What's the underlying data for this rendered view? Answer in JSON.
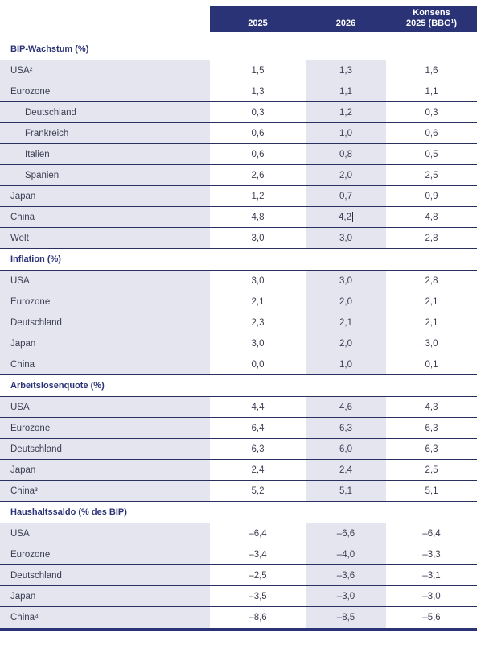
{
  "header": {
    "columns": [
      {
        "label": "2025"
      },
      {
        "label": "2026"
      },
      {
        "label_line1": "Konsens",
        "label_line2": "2025 (BBG¹)"
      }
    ]
  },
  "table": {
    "sections": [
      {
        "title": "BIP-Wachstum (%)",
        "rows": [
          {
            "label": "USA²",
            "indent": false,
            "values": [
              "1,5",
              "1,3",
              "1,6"
            ]
          },
          {
            "label": "Eurozone",
            "indent": false,
            "values": [
              "1,3",
              "1,1",
              "1,1"
            ]
          },
          {
            "label": "Deutschland",
            "indent": true,
            "values": [
              "0,3",
              "1,2",
              "0,3"
            ]
          },
          {
            "label": "Frankreich",
            "indent": true,
            "values": [
              "0,6",
              "1,0",
              "0,6"
            ]
          },
          {
            "label": "Italien",
            "indent": true,
            "values": [
              "0,6",
              "0,8",
              "0,5"
            ]
          },
          {
            "label": "Spanien",
            "indent": true,
            "values": [
              "2,6",
              "2,0",
              "2,5"
            ]
          },
          {
            "label": "Japan",
            "indent": false,
            "values": [
              "1,2",
              "0,7",
              "0,9"
            ]
          },
          {
            "label": "China",
            "indent": false,
            "values": [
              "4,8",
              "4,2",
              "4,8"
            ],
            "caret_after_col": 1
          },
          {
            "label": "Welt",
            "indent": false,
            "values": [
              "3,0",
              "3,0",
              "2,8"
            ]
          }
        ]
      },
      {
        "title": "Inflation (%)",
        "rows": [
          {
            "label": "USA",
            "indent": false,
            "values": [
              "3,0",
              "3,0",
              "2,8"
            ]
          },
          {
            "label": "Eurozone",
            "indent": false,
            "values": [
              "2,1",
              "2,0",
              "2,1"
            ]
          },
          {
            "label": "Deutschland",
            "indent": false,
            "values": [
              "2,3",
              "2,1",
              "2,1"
            ]
          },
          {
            "label": "Japan",
            "indent": false,
            "values": [
              "3,0",
              "2,0",
              "3,0"
            ]
          },
          {
            "label": "China",
            "indent": false,
            "values": [
              "0,0",
              "1,0",
              "0,1"
            ]
          }
        ]
      },
      {
        "title": "Arbeitslosenquote (%)",
        "rows": [
          {
            "label": "USA",
            "indent": false,
            "values": [
              "4,4",
              "4,6",
              "4,3"
            ]
          },
          {
            "label": "Eurozone",
            "indent": false,
            "values": [
              "6,4",
              "6,3",
              "6,3"
            ]
          },
          {
            "label": "Deutschland",
            "indent": false,
            "values": [
              "6,3",
              "6,0",
              "6,3"
            ]
          },
          {
            "label": "Japan",
            "indent": false,
            "values": [
              "2,4",
              "2,4",
              "2,5"
            ]
          },
          {
            "label": "China³",
            "indent": false,
            "values": [
              "5,2",
              "5,1",
              "5,1"
            ]
          }
        ]
      },
      {
        "title": "Haushaltssaldo (% des BIP)",
        "rows": [
          {
            "label": "USA",
            "indent": false,
            "values": [
              "–6,4",
              "–6,6",
              "–6,4"
            ]
          },
          {
            "label": "Eurozone",
            "indent": false,
            "values": [
              "–3,4",
              "–4,0",
              "–3,3"
            ]
          },
          {
            "label": "Deutschland",
            "indent": false,
            "values": [
              "–2,5",
              "–3,6",
              "–3,1"
            ]
          },
          {
            "label": "Japan",
            "indent": false,
            "values": [
              "–3,5",
              "–3,0",
              "–3,0"
            ]
          },
          {
            "label": "China⁴",
            "indent": false,
            "values": [
              "–8,6",
              "–8,5",
              "–5,6"
            ]
          }
        ]
      }
    ]
  },
  "cursor": {
    "visible": true
  },
  "colors": {
    "header_bar": "#2b3377",
    "row_label_bg": "#e5e5f0",
    "line": "#2a3161",
    "section_title": "#2b3377",
    "text": "#3c3e52"
  }
}
